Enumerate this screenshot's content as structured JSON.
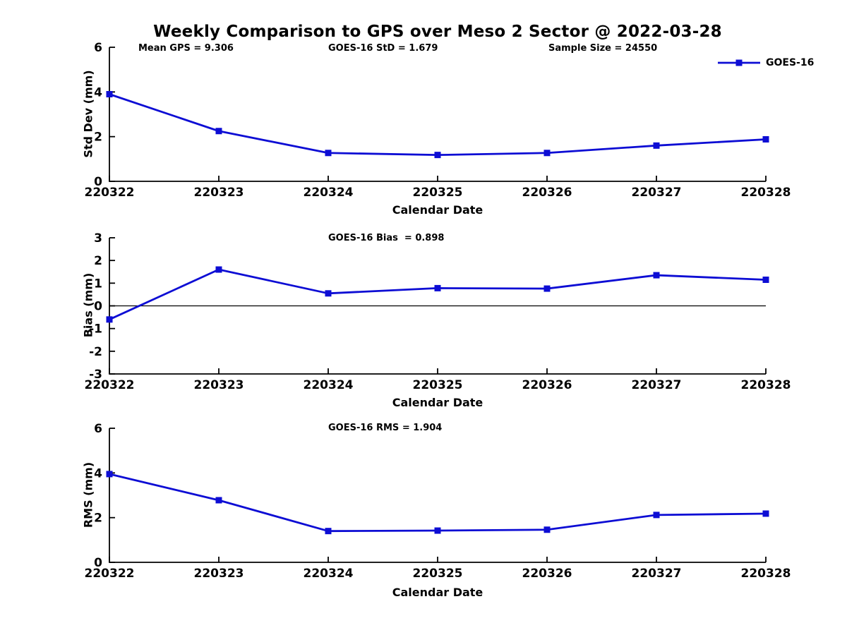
{
  "title": "Weekly Comparison to GPS over Meso 2 Sector @ 2022-03-28",
  "legend": {
    "label": "GOES-16",
    "color": "#0d0dd4",
    "marker": "square",
    "position": "top-right"
  },
  "colors": {
    "series_blue": "#0d0dd4",
    "axis": "#000000",
    "background": "#ffffff"
  },
  "chart_data": [
    {
      "type": "line",
      "categories": [
        "220322",
        "220323",
        "220324",
        "220325",
        "220326",
        "220327",
        "220328"
      ],
      "series": [
        {
          "name": "GOES-16",
          "color": "#0d0dd4",
          "marker": "square",
          "values": [
            3.9,
            2.25,
            1.27,
            1.18,
            1.27,
            1.6,
            1.88
          ]
        }
      ],
      "xlabel": "Calendar Date",
      "ylabel": "Std Dev (mm)",
      "ylim": [
        0,
        6
      ],
      "yticks": [
        0,
        2,
        4,
        6
      ],
      "grid": false,
      "zero_line": false,
      "annotations": [
        "Mean GPS = 9.306",
        "GOES-16 StD = 1.679",
        "Sample Size = 24550"
      ]
    },
    {
      "type": "line",
      "categories": [
        "220322",
        "220323",
        "220324",
        "220325",
        "220326",
        "220327",
        "220328"
      ],
      "series": [
        {
          "name": "GOES-16",
          "color": "#0d0dd4",
          "marker": "square",
          "values": [
            -0.6,
            1.6,
            0.55,
            0.78,
            0.76,
            1.35,
            1.15
          ]
        }
      ],
      "xlabel": "Calendar Date",
      "ylabel": "Bias (mm)",
      "ylim": [
        -3,
        3
      ],
      "yticks": [
        -3,
        -2,
        -1,
        0,
        1,
        2,
        3
      ],
      "grid": false,
      "zero_line": true,
      "annotations": [
        "GOES-16 Bias  = 0.898"
      ]
    },
    {
      "type": "line",
      "categories": [
        "220322",
        "220323",
        "220324",
        "220325",
        "220326",
        "220327",
        "220328"
      ],
      "series": [
        {
          "name": "GOES-16",
          "color": "#0d0dd4",
          "marker": "square",
          "values": [
            3.95,
            2.78,
            1.4,
            1.42,
            1.46,
            2.12,
            2.18
          ]
        }
      ],
      "xlabel": "Calendar Date",
      "ylabel": "RMS (mm)",
      "ylim": [
        0,
        6
      ],
      "yticks": [
        0,
        2,
        4,
        6
      ],
      "grid": false,
      "zero_line": false,
      "annotations": [
        "GOES-16 RMS = 1.904"
      ]
    }
  ]
}
